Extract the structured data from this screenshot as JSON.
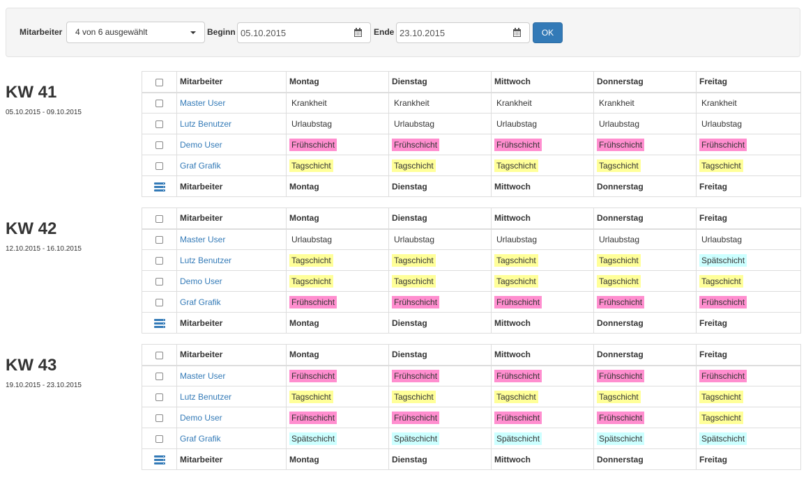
{
  "filter": {
    "employee_label": "Mitarbeiter",
    "employee_selected": "4 von 6 ausgewählt",
    "start_label": "Beginn",
    "start_value": "05.10.2015",
    "end_label": "Ende",
    "end_value": "23.10.2015",
    "ok_label": "OK"
  },
  "colors": {
    "Frühschicht": "#ff8ecf",
    "Tagschicht": "#ffff99",
    "Spätschicht": "#ccffff",
    "Krankheit": "transparent",
    "Urlaubstag": "transparent",
    "link": "#337ab7"
  },
  "columns": [
    "Mitarbeiter",
    "Montag",
    "Dienstag",
    "Mittwoch",
    "Donnerstag",
    "Freitag"
  ],
  "weeks": [
    {
      "title": "KW 41",
      "range": "05.10.2015 - 09.10.2015",
      "rows": [
        {
          "user": "Master User",
          "shifts": [
            "Krankheit",
            "Krankheit",
            "Krankheit",
            "Krankheit",
            "Krankheit"
          ]
        },
        {
          "user": "Lutz Benutzer",
          "shifts": [
            "Urlaubstag",
            "Urlaubstag",
            "Urlaubstag",
            "Urlaubstag",
            "Urlaubstag"
          ]
        },
        {
          "user": "Demo User",
          "shifts": [
            "Frühschicht",
            "Frühschicht",
            "Frühschicht",
            "Frühschicht",
            "Frühschicht"
          ]
        },
        {
          "user": "Graf Grafik",
          "shifts": [
            "Tagschicht",
            "Tagschicht",
            "Tagschicht",
            "Tagschicht",
            "Tagschicht"
          ]
        }
      ]
    },
    {
      "title": "KW 42",
      "range": "12.10.2015 - 16.10.2015",
      "rows": [
        {
          "user": "Master User",
          "shifts": [
            "Urlaubstag",
            "Urlaubstag",
            "Urlaubstag",
            "Urlaubstag",
            "Urlaubstag"
          ]
        },
        {
          "user": "Lutz Benutzer",
          "shifts": [
            "Tagschicht",
            "Tagschicht",
            "Tagschicht",
            "Tagschicht",
            "Spätschicht"
          ]
        },
        {
          "user": "Demo User",
          "shifts": [
            "Tagschicht",
            "Tagschicht",
            "Tagschicht",
            "Tagschicht",
            "Tagschicht"
          ]
        },
        {
          "user": "Graf Grafik",
          "shifts": [
            "Frühschicht",
            "Frühschicht",
            "Frühschicht",
            "Frühschicht",
            "Frühschicht"
          ]
        }
      ]
    },
    {
      "title": "KW 43",
      "range": "19.10.2015 - 23.10.2015",
      "rows": [
        {
          "user": "Master User",
          "shifts": [
            "Frühschicht",
            "Frühschicht",
            "Frühschicht",
            "Frühschicht",
            "Frühschicht"
          ]
        },
        {
          "user": "Lutz Benutzer",
          "shifts": [
            "Tagschicht",
            "Tagschicht",
            "Tagschicht",
            "Tagschicht",
            "Tagschicht"
          ]
        },
        {
          "user": "Demo User",
          "shifts": [
            "Frühschicht",
            "Frühschicht",
            "Frühschicht",
            "Frühschicht",
            "Tagschicht"
          ]
        },
        {
          "user": "Graf Grafik",
          "shifts": [
            "Spätschicht",
            "Spätschicht",
            "Spätschicht",
            "Spätschicht",
            "Spätschicht"
          ]
        }
      ]
    }
  ]
}
